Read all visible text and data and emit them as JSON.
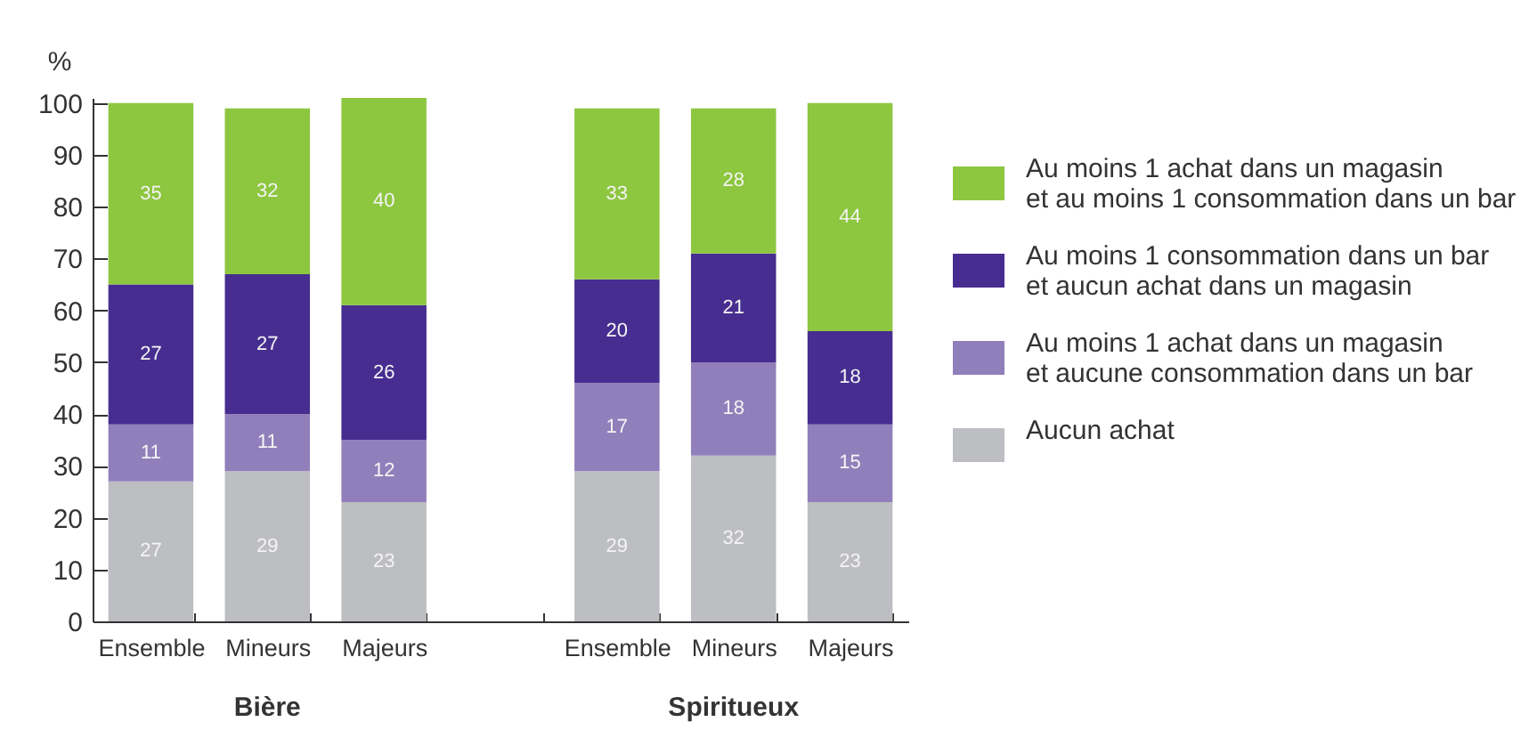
{
  "chart_data": {
    "type": "bar",
    "stacked": true,
    "ylabel": "%",
    "categories": [
      "Ensemble",
      "Mineurs",
      "Majeurs",
      null,
      "Ensemble",
      "Mineurs",
      "Majeurs"
    ],
    "series": [
      {
        "name": "Aucun achat",
        "color": "#bdbec2",
        "values": [
          27,
          29,
          23,
          null,
          29,
          32,
          23
        ]
      },
      {
        "name": "Au moins 1 achat dans un magasin\net aucune consommation dans un bar",
        "color": "#917fbb",
        "values": [
          11,
          11,
          12,
          null,
          17,
          18,
          15
        ]
      },
      {
        "name": "Au moins 1 consommation dans un bar\net aucun achat dans un magasin",
        "color": "#472d8f",
        "values": [
          27,
          27,
          26,
          null,
          20,
          21,
          18
        ]
      },
      {
        "name": "Au moins 1 achat dans un magasin\net au moins 1 consommation dans un bar",
        "color": "#8dc63f",
        "values": [
          35,
          32,
          40,
          null,
          33,
          28,
          44
        ]
      }
    ],
    "ylim": [
      0,
      101
    ],
    "yticks": [
      0,
      10,
      20,
      30,
      40,
      50,
      60,
      70,
      80,
      90,
      100
    ],
    "data_labels": true,
    "legend": "right",
    "annotations": [
      "Bière",
      "Spiritueux"
    ]
  }
}
